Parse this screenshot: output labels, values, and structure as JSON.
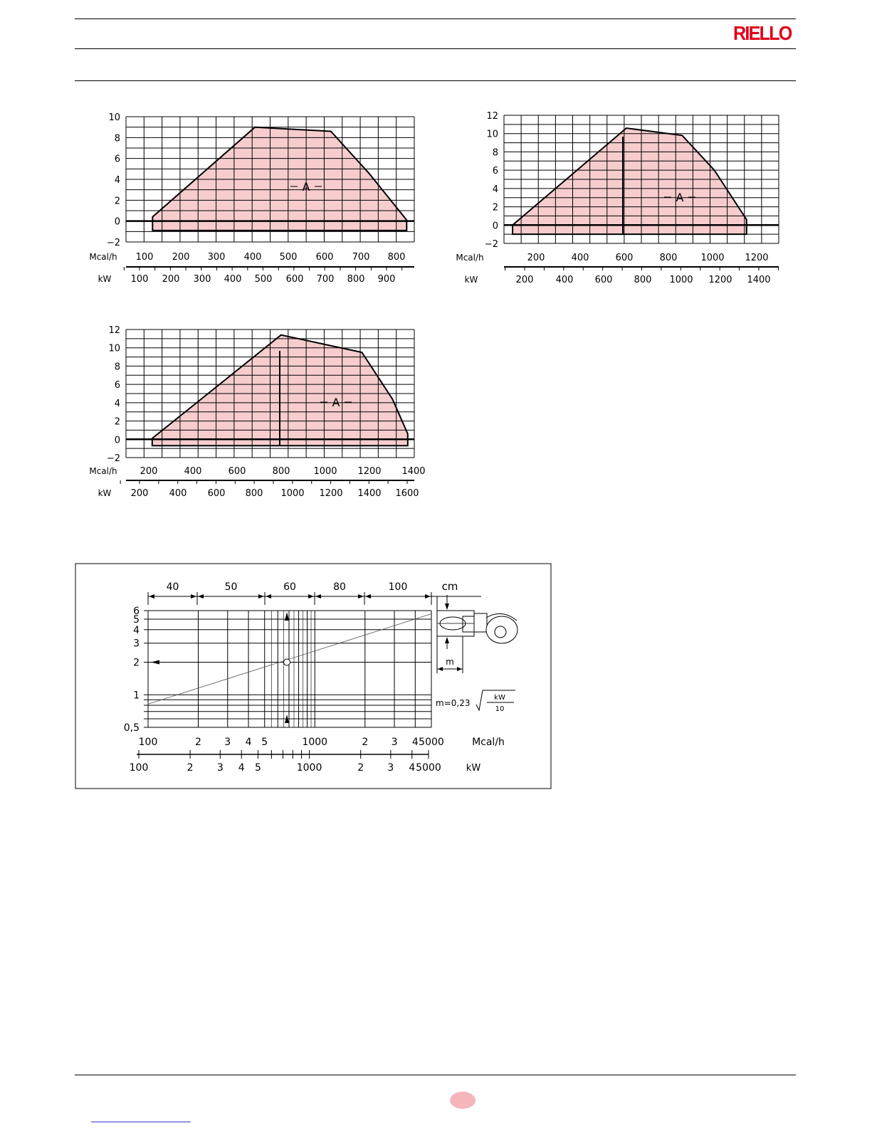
{
  "header": {
    "brand": "RIELLO"
  },
  "charts": [
    {
      "id": "chart1",
      "ylim": [
        -2,
        10
      ],
      "yticks": [
        "10",
        "8",
        "6",
        "4",
        "2",
        "0",
        "-2"
      ],
      "mcal_label": "Mcal/h",
      "kw_label": "kW",
      "mcal_ticks": [
        "100",
        "200",
        "300",
        "400",
        "500",
        "600",
        "700",
        "800"
      ],
      "kw_ticks": [
        "100",
        "200",
        "300",
        "400",
        "500",
        "600",
        "700",
        "800",
        "900"
      ],
      "area_label": "A"
    },
    {
      "id": "chart2",
      "ylim": [
        -2,
        12
      ],
      "yticks": [
        "12",
        "10",
        "8",
        "6",
        "4",
        "2",
        "0",
        "-2"
      ],
      "mcal_label": "Mcal/h",
      "kw_label": "kW",
      "mcal_ticks": [
        "200",
        "400",
        "600",
        "800",
        "1000",
        "1200"
      ],
      "kw_ticks": [
        "200",
        "400",
        "600",
        "800",
        "1000",
        "1200",
        "1400"
      ],
      "area_label": "A"
    },
    {
      "id": "chart3",
      "ylim": [
        -2,
        12
      ],
      "yticks": [
        "12",
        "10",
        "8",
        "6",
        "4",
        "2",
        "0",
        "-2"
      ],
      "mcal_label": "Mcal/h",
      "kw_label": "kW",
      "mcal_ticks": [
        "200",
        "400",
        "600",
        "800",
        "1000",
        "1200",
        "1400"
      ],
      "kw_ticks": [
        "200",
        "400",
        "600",
        "800",
        "1000",
        "1200",
        "1400",
        "1600"
      ],
      "area_label": "A"
    }
  ],
  "chart_data": [
    {
      "type": "area",
      "x_unit": "Mcal/h",
      "xlim": [
        60,
        820
      ],
      "ylim": [
        -2,
        10
      ],
      "grid": true,
      "series": [
        {
          "points": [
            [
              130,
              0.4
            ],
            [
              400,
              9.0
            ],
            [
              600,
              8.6
            ],
            [
              700,
              4.6
            ],
            [
              800,
              0.1
            ],
            [
              800,
              -0.9
            ],
            [
              130,
              -0.9
            ]
          ]
        }
      ]
    },
    {
      "type": "area",
      "x_unit": "Mcal/h",
      "xlim": [
        20,
        1300
      ],
      "ylim": [
        -2,
        12
      ],
      "grid": true,
      "series": [
        {
          "points": [
            [
              60,
              0.0
            ],
            [
              590,
              10.6
            ],
            [
              850,
              9.8
            ],
            [
              1000,
              6.0
            ],
            [
              1150,
              0.6
            ],
            [
              1150,
              -1.0
            ],
            [
              60,
              -1.0
            ]
          ]
        }
      ]
    },
    {
      "type": "area",
      "x_unit": "Mcal/h",
      "xlim": [
        80,
        1400
      ],
      "ylim": [
        -2,
        12
      ],
      "grid": true,
      "series": [
        {
          "points": [
            [
              200,
              0.1
            ],
            [
              790,
              11.4
            ],
            [
              1160,
              9.5
            ],
            [
              1300,
              4.4
            ],
            [
              1370,
              0.6
            ],
            [
              1370,
              -0.7
            ],
            [
              200,
              -0.7
            ]
          ]
        }
      ]
    },
    {
      "type": "line",
      "scale": "log-log",
      "xlim": [
        100,
        5000
      ],
      "ylim": [
        0.5,
        6
      ],
      "x_unit": "Mcal/h",
      "y_unit": "cm",
      "series": [
        {
          "points": [
            [
              100,
              0.82
            ],
            [
              680,
              2.0
            ],
            [
              5000,
              5.6
            ]
          ]
        }
      ]
    }
  ],
  "nomogram": {
    "top_ranges": [
      "40",
      "50",
      "60",
      "80",
      "100"
    ],
    "top_unit": "cm",
    "yticks": [
      "6",
      "5",
      "4",
      "3",
      "2",
      "1",
      "0,5"
    ],
    "mcal_ticks": [
      "100",
      "2",
      "3",
      "4",
      "5",
      "1000",
      "2",
      "3",
      "4",
      "5000"
    ],
    "mcal_label": "Mcal/h",
    "kw_ticks": [
      "100",
      "2",
      "3",
      "4",
      "5",
      "1000",
      "2",
      "3",
      "4",
      "5000"
    ],
    "kw_label": "kW",
    "diagram_label": "m",
    "formula_prefix": "m=0,23",
    "formula_num": "kW",
    "formula_den": "10"
  }
}
